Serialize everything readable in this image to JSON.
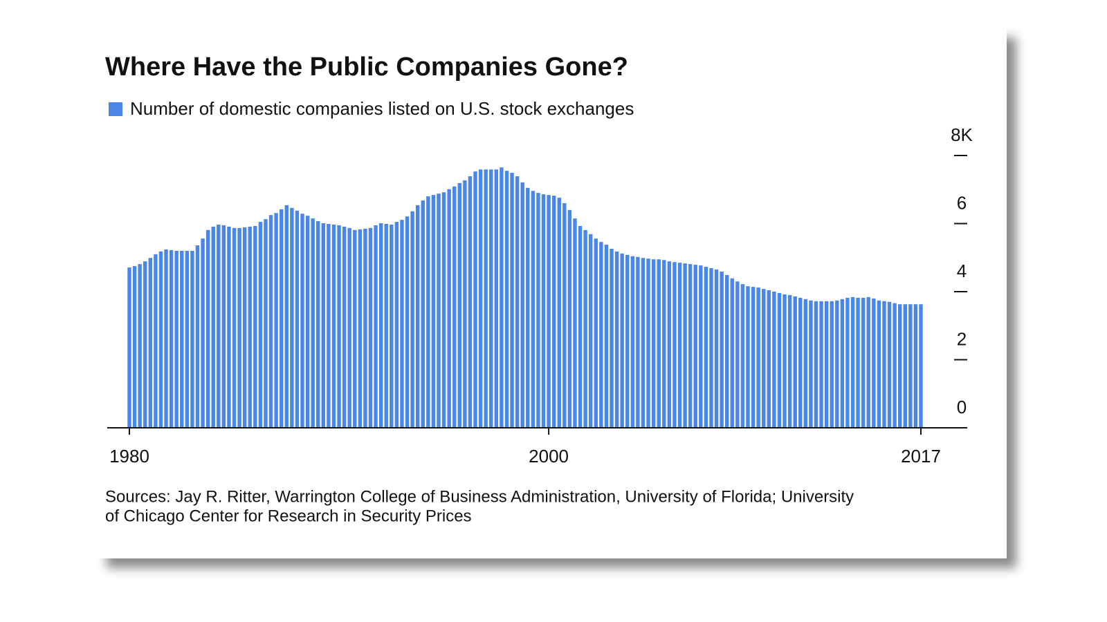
{
  "chart_data": {
    "type": "bar",
    "title": "Where Have the Public Companies Gone?",
    "legend": "Number of domestic companies listed on U.S. stock exchanges",
    "source": [
      "Sources: Jay R. Ritter, Warrington College of Business Administration, University of Florida; University",
      "of Chicago Center for Research in Security Prices"
    ],
    "color": "#4a86e8",
    "categories": [
      "1980",
      null,
      null,
      null,
      null,
      null,
      null,
      null,
      null,
      null,
      null,
      null,
      null,
      null,
      null,
      null,
      null,
      null,
      null,
      null,
      null,
      null,
      null,
      null,
      null,
      null,
      null,
      null,
      null,
      null,
      null,
      null,
      null,
      null,
      null,
      null,
      null,
      null,
      null,
      null,
      null,
      null,
      null,
      null,
      null,
      null,
      null,
      null,
      null,
      null,
      null,
      null,
      null,
      null,
      null,
      null,
      null,
      null,
      null,
      null,
      null,
      null,
      null,
      null,
      null,
      null,
      null,
      null,
      null,
      null,
      null,
      null,
      null,
      null,
      null,
      null,
      null,
      null,
      null,
      null,
      "2000",
      null,
      null,
      null,
      null,
      null,
      null,
      null,
      null,
      null,
      null,
      null,
      null,
      null,
      null,
      null,
      null,
      null,
      null,
      null,
      null,
      null,
      null,
      null,
      null,
      null,
      null,
      null,
      null,
      null,
      null,
      null,
      null,
      null,
      null,
      null,
      null,
      null,
      null,
      null,
      null,
      null,
      null,
      null,
      null,
      null,
      null,
      null,
      null,
      null,
      null,
      null,
      null,
      null,
      null,
      null,
      null,
      null,
      null,
      null,
      null,
      null,
      null,
      null,
      null,
      null,
      null,
      null,
      null,
      null,
      null,
      "2017"
    ],
    "values": [
      4.71,
      4.75,
      4.81,
      4.89,
      4.99,
      5.1,
      5.18,
      5.24,
      5.22,
      5.2,
      5.2,
      5.2,
      5.2,
      5.36,
      5.56,
      5.81,
      5.91,
      5.97,
      5.95,
      5.91,
      5.87,
      5.87,
      5.89,
      5.91,
      5.93,
      6.05,
      6.13,
      6.25,
      6.31,
      6.42,
      6.54,
      6.46,
      6.38,
      6.29,
      6.23,
      6.15,
      6.07,
      6.01,
      5.99,
      5.97,
      5.95,
      5.91,
      5.87,
      5.81,
      5.83,
      5.85,
      5.87,
      5.95,
      6.01,
      5.99,
      5.97,
      6.05,
      6.11,
      6.21,
      6.36,
      6.54,
      6.68,
      6.8,
      6.84,
      6.88,
      6.92,
      7.01,
      7.09,
      7.19,
      7.27,
      7.39,
      7.53,
      7.59,
      7.59,
      7.59,
      7.59,
      7.65,
      7.55,
      7.49,
      7.39,
      7.21,
      7.05,
      6.96,
      6.9,
      6.86,
      6.84,
      6.82,
      6.76,
      6.6,
      6.4,
      6.15,
      5.93,
      5.81,
      5.69,
      5.56,
      5.46,
      5.38,
      5.26,
      5.18,
      5.12,
      5.08,
      5.04,
      5.02,
      4.99,
      4.97,
      4.95,
      4.95,
      4.93,
      4.89,
      4.87,
      4.85,
      4.83,
      4.81,
      4.79,
      4.77,
      4.73,
      4.69,
      4.65,
      4.59,
      4.49,
      4.39,
      4.3,
      4.22,
      4.16,
      4.14,
      4.12,
      4.08,
      4.04,
      4.0,
      3.96,
      3.92,
      3.9,
      3.86,
      3.82,
      3.78,
      3.74,
      3.72,
      3.72,
      3.72,
      3.72,
      3.74,
      3.78,
      3.82,
      3.84,
      3.82,
      3.82,
      3.84,
      3.8,
      3.74,
      3.72,
      3.7,
      3.66,
      3.63,
      3.63,
      3.63,
      3.63,
      3.63
    ],
    "ylim": [
      0,
      8
    ],
    "yticks": [
      0,
      2,
      4,
      6,
      {
        "value": 8,
        "label": "8K"
      }
    ]
  }
}
